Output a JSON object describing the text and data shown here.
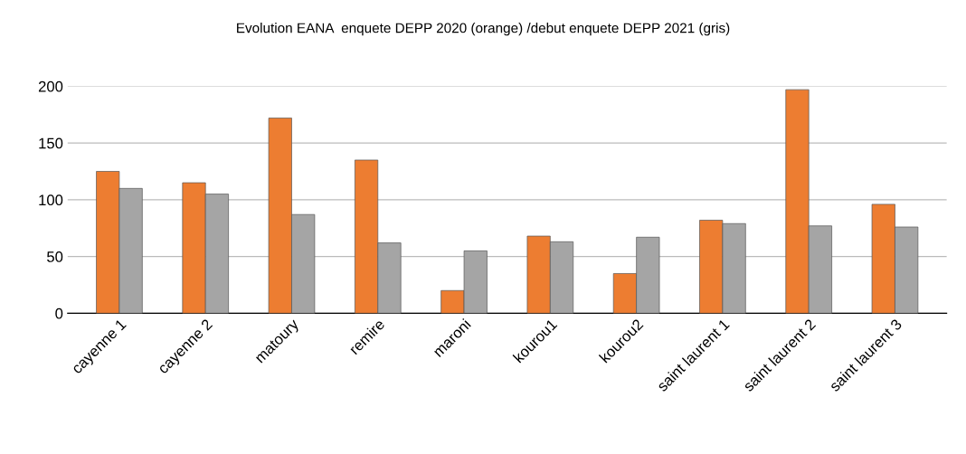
{
  "chart_data": {
    "type": "bar",
    "title": "Evolution EANA  enquete DEPP 2020 (orange) /debut enquete DEPP 2021 (gris)",
    "categories": [
      "cayenne 1",
      "cayenne 2",
      "matoury",
      "remire",
      "maroni",
      "kourou1",
      "kourou2",
      "saint laurent 1",
      "saint laurent 2",
      "saint laurent 3"
    ],
    "series": [
      {
        "color": "#ed7d31",
        "values": [
          125,
          115,
          172,
          135,
          20,
          68,
          35,
          82,
          197,
          96
        ]
      },
      {
        "color": "#a5a5a5",
        "values": [
          110,
          105,
          87,
          62,
          55,
          63,
          67,
          79,
          77,
          76
        ]
      }
    ],
    "ylim": [
      0,
      200
    ],
    "yticks": [
      0,
      50,
      100,
      150,
      200
    ],
    "grid": "y"
  }
}
